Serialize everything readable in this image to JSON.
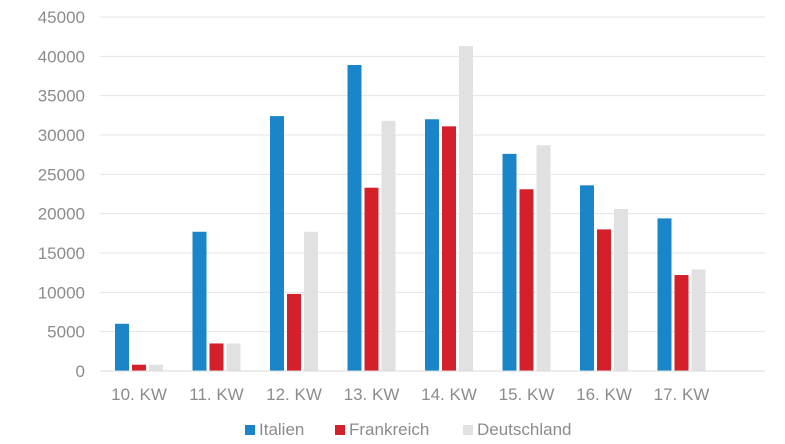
{
  "chart_data": {
    "type": "bar",
    "categories": [
      "10. KW",
      "11. KW",
      "12. KW",
      "13. KW",
      "14. KW",
      "15. KW",
      "16. KW",
      "17. KW"
    ],
    "series": [
      {
        "name": "Italien",
        "color": "#1a85c8",
        "values": [
          6000,
          17700,
          32400,
          38900,
          32000,
          27600,
          23600,
          19400
        ]
      },
      {
        "name": "Frankreich",
        "color": "#d4202a",
        "values": [
          800,
          3500,
          9800,
          23300,
          31100,
          23100,
          18000,
          12200
        ]
      },
      {
        "name": "Deutschland",
        "color": "#e1e1e1",
        "values": [
          800,
          3500,
          17700,
          31800,
          41300,
          28700,
          20600,
          12900
        ]
      }
    ],
    "ylim": [
      0,
      45000
    ],
    "yticks": [
      0,
      5000,
      10000,
      15000,
      20000,
      25000,
      30000,
      35000,
      40000,
      45000
    ],
    "grid": true,
    "legend_position": "bottom"
  }
}
